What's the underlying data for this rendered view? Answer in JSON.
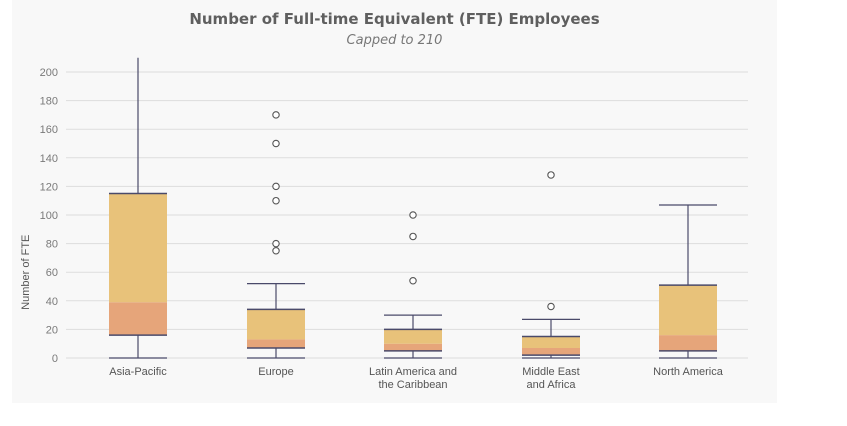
{
  "colors": {
    "grid": "#dddddd",
    "upper_box": "#e8c27a",
    "lower_box": "#e6a57a",
    "line": "#4a4a6a",
    "outlier": "#555555"
  },
  "chart_data": {
    "type": "box",
    "title": "Number of Full-time Equivalent (FTE) Employees",
    "subtitle": "Capped to 210",
    "ylabel": "Number of FTE",
    "ylim": [
      0,
      210
    ],
    "yticks": [
      0,
      20,
      40,
      60,
      80,
      100,
      120,
      140,
      160,
      180,
      200
    ],
    "categories": [
      {
        "name": "Asia-Pacific",
        "label_lines": [
          "Asia-Pacific"
        ],
        "min": 0,
        "q1": 16,
        "median": 39,
        "q3": 115,
        "max": 210,
        "outliers": []
      },
      {
        "name": "Europe",
        "label_lines": [
          "Europe"
        ],
        "min": 0,
        "q1": 7,
        "median": 13,
        "q3": 34,
        "max": 52,
        "outliers": [
          75,
          80,
          110,
          120,
          150,
          170
        ]
      },
      {
        "name": "Latin America and the Caribbean",
        "label_lines": [
          "Latin America and",
          "the Caribbean"
        ],
        "min": 0,
        "q1": 5,
        "median": 10,
        "q3": 20,
        "max": 30,
        "outliers": [
          54,
          85,
          100
        ]
      },
      {
        "name": "Middle East and Africa",
        "label_lines": [
          "Middle East",
          "and Africa"
        ],
        "min": 0,
        "q1": 2,
        "median": 7,
        "q3": 15,
        "max": 27,
        "outliers": [
          36,
          128
        ]
      },
      {
        "name": "North America",
        "label_lines": [
          "North America"
        ],
        "min": 0,
        "q1": 5,
        "median": 16,
        "q3": 51,
        "max": 107,
        "outliers": []
      }
    ]
  }
}
